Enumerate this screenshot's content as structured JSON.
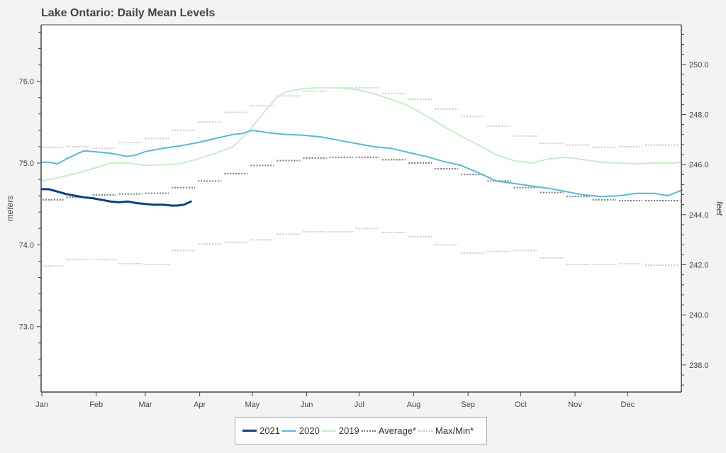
{
  "chart_data": {
    "type": "line",
    "title": "Lake Ontario: Daily Mean Levels",
    "xlabel": "",
    "ylabel": "meters",
    "ylabel_right": "feet",
    "x_unit": "day of year",
    "xlim": [
      1,
      366
    ],
    "ylim": [
      72.2,
      76.69
    ],
    "ylim_right": [
      236.92,
      251.58
    ],
    "grid": false,
    "legend_position": "bottom",
    "x_ticks": [
      {
        "label": "Jan",
        "day": 1
      },
      {
        "label": "Feb",
        "day": 32
      },
      {
        "label": "Mar",
        "day": 60
      },
      {
        "label": "Apr",
        "day": 91
      },
      {
        "label": "May",
        "day": 121
      },
      {
        "label": "Jun",
        "day": 152
      },
      {
        "label": "Jul",
        "day": 182
      },
      {
        "label": "Aug",
        "day": 213
      },
      {
        "label": "Sep",
        "day": 244
      },
      {
        "label": "Oct",
        "day": 274
      },
      {
        "label": "Nov",
        "day": 305
      },
      {
        "label": "Dec",
        "day": 335
      }
    ],
    "y_ticks_left": [
      {
        "label": "76.0",
        "value": 76.0
      },
      {
        "label": "75.0",
        "value": 75.0
      },
      {
        "label": "74.0",
        "value": 74.0
      },
      {
        "label": "73.0",
        "value": 73.0
      }
    ],
    "y_ticks_right": [
      {
        "label": "250.0",
        "value": 250.0
      },
      {
        "label": "248.0",
        "value": 248.0
      },
      {
        "label": "246.0",
        "value": 246.0
      },
      {
        "label": "244.0",
        "value": 244.0
      },
      {
        "label": "242.0",
        "value": 242.0
      },
      {
        "label": "240.0",
        "value": 240.0
      },
      {
        "label": "238.0",
        "value": 238.0
      }
    ],
    "series": [
      {
        "name": "2021",
        "color": "#0d3f7f",
        "style": "solid",
        "width": 3,
        "x": [
          1,
          5,
          10,
          15,
          20,
          25,
          30,
          35,
          40,
          45,
          50,
          55,
          60,
          65,
          70,
          75,
          78,
          82,
          86
        ],
        "y": [
          74.68,
          74.68,
          74.65,
          74.62,
          74.6,
          74.58,
          74.57,
          74.55,
          74.53,
          74.52,
          74.53,
          74.51,
          74.5,
          74.49,
          74.49,
          74.48,
          74.48,
          74.49,
          74.53
        ]
      },
      {
        "name": "2020",
        "color": "#5bb8d6",
        "style": "solid",
        "width": 2,
        "x": [
          1,
          5,
          10,
          15,
          20,
          25,
          30,
          40,
          50,
          55,
          60,
          65,
          70,
          80,
          90,
          100,
          110,
          115,
          121,
          130,
          140,
          150,
          160,
          170,
          180,
          190,
          200,
          210,
          220,
          230,
          240,
          250,
          260,
          270,
          280,
          290,
          300,
          310,
          320,
          330,
          340,
          350,
          358,
          366
        ],
        "y": [
          75.01,
          75.01,
          74.99,
          75.05,
          75.1,
          75.15,
          75.14,
          75.12,
          75.08,
          75.1,
          75.14,
          75.16,
          75.18,
          75.21,
          75.25,
          75.3,
          75.35,
          75.36,
          75.4,
          75.37,
          75.35,
          75.34,
          75.32,
          75.28,
          75.24,
          75.2,
          75.18,
          75.13,
          75.08,
          75.02,
          74.97,
          74.88,
          74.78,
          74.75,
          74.72,
          74.69,
          74.65,
          74.61,
          74.59,
          74.6,
          74.63,
          74.63,
          74.6,
          74.67
        ]
      },
      {
        "name": "2019",
        "color": "#c9ecc8",
        "style": "solid",
        "width": 2,
        "x": [
          1,
          10,
          20,
          30,
          40,
          50,
          60,
          70,
          80,
          90,
          100,
          110,
          115,
          120,
          125,
          130,
          135,
          140,
          150,
          160,
          170,
          180,
          190,
          200,
          210,
          220,
          230,
          240,
          250,
          260,
          270,
          280,
          290,
          300,
          310,
          320,
          330,
          340,
          350,
          360,
          366
        ],
        "y": [
          74.78,
          74.82,
          74.87,
          74.93,
          75.0,
          75.0,
          74.97,
          74.98,
          74.99,
          75.05,
          75.12,
          75.2,
          75.3,
          75.42,
          75.55,
          75.68,
          75.8,
          75.87,
          75.91,
          75.92,
          75.92,
          75.9,
          75.85,
          75.78,
          75.7,
          75.58,
          75.45,
          75.33,
          75.22,
          75.1,
          75.03,
          75.0,
          75.05,
          75.07,
          75.04,
          75.01,
          75.0,
          74.99,
          75.0,
          75.0,
          75.01
        ]
      },
      {
        "name": "Average*",
        "color": "#777777",
        "style": "dotted",
        "width": 2,
        "x": [
          1,
          15,
          30,
          45,
          60,
          75,
          90,
          105,
          120,
          135,
          150,
          165,
          180,
          195,
          210,
          225,
          240,
          255,
          270,
          285,
          300,
          315,
          330,
          345,
          366
        ],
        "y": [
          74.55,
          74.58,
          74.61,
          74.62,
          74.63,
          74.7,
          74.78,
          74.87,
          74.97,
          75.03,
          75.06,
          75.07,
          75.07,
          75.04,
          75.0,
          74.93,
          74.86,
          74.78,
          74.7,
          74.64,
          74.59,
          74.55,
          74.54,
          74.54,
          74.54
        ]
      },
      {
        "name": "Max/Min*",
        "color": "#c8c8c8",
        "style": "dotted",
        "width": 2,
        "max_x": [
          1,
          15,
          30,
          45,
          60,
          75,
          90,
          105,
          120,
          135,
          150,
          165,
          180,
          195,
          210,
          225,
          240,
          255,
          270,
          285,
          300,
          315,
          330,
          345,
          366
        ],
        "max_y": [
          75.19,
          75.2,
          75.18,
          75.25,
          75.3,
          75.4,
          75.5,
          75.62,
          75.7,
          75.82,
          75.88,
          75.92,
          75.92,
          75.85,
          75.78,
          75.66,
          75.57,
          75.45,
          75.33,
          75.24,
          75.22,
          75.19,
          75.2,
          75.22,
          75.19
        ],
        "min_x": [
          1,
          15,
          30,
          45,
          60,
          75,
          90,
          105,
          120,
          135,
          150,
          165,
          180,
          195,
          210,
          225,
          240,
          255,
          270,
          285,
          300,
          315,
          330,
          345,
          366
        ],
        "min_y": [
          73.74,
          73.82,
          73.82,
          73.77,
          73.76,
          73.93,
          74.01,
          74.03,
          74.06,
          74.13,
          74.16,
          74.16,
          74.2,
          74.15,
          74.1,
          74.0,
          73.9,
          73.92,
          73.93,
          73.84,
          73.76,
          73.76,
          73.77,
          73.75,
          73.75
        ]
      }
    ]
  },
  "legend": {
    "items": [
      {
        "label": "2021",
        "color": "#0d3f7f",
        "style": "solid"
      },
      {
        "label": "2020",
        "color": "#5bb8d6",
        "style": "solid"
      },
      {
        "label": "2019",
        "color": "#c9ecc8",
        "style": "solid"
      },
      {
        "label": "Average*",
        "color": "#777777",
        "style": "dotted"
      },
      {
        "label": "Max/Min*",
        "color": "#c8c8c8",
        "style": "dotted"
      }
    ]
  }
}
